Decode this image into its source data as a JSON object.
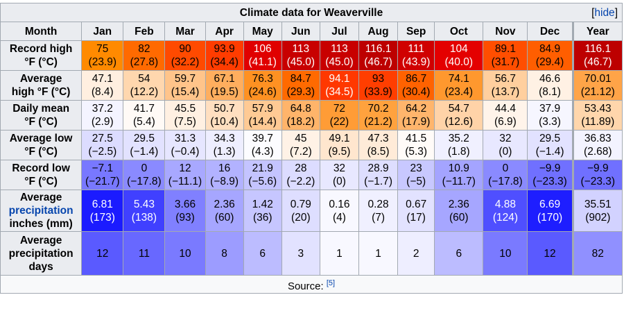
{
  "title": "Climate data for Weaverville",
  "hide_label": "hide",
  "header": {
    "month": "Month",
    "months": [
      "Jan",
      "Feb",
      "Mar",
      "Apr",
      "May",
      "Jun",
      "Jul",
      "Aug",
      "Sep",
      "Oct",
      "Nov",
      "Dec"
    ],
    "year": "Year"
  },
  "rows": [
    {
      "id": "record-high",
      "label_lines": [
        "Record high",
        "°F (°C)"
      ],
      "cells": [
        {
          "v": "75",
          "s": "(23.9)",
          "bg": "#ff8a00",
          "fg": "#000000"
        },
        {
          "v": "82",
          "s": "(27.8)",
          "bg": "#ff6a00",
          "fg": "#000000"
        },
        {
          "v": "90",
          "s": "(32.2)",
          "bg": "#ff4a00",
          "fg": "#000000"
        },
        {
          "v": "93.9",
          "s": "(34.4)",
          "bg": "#ff3c00",
          "fg": "#000000"
        },
        {
          "v": "106",
          "s": "(41.1)",
          "bg": "#e00000",
          "fg": "#ffffff"
        },
        {
          "v": "113",
          "s": "(45.0)",
          "bg": "#c80000",
          "fg": "#ffffff"
        },
        {
          "v": "113",
          "s": "(45.0)",
          "bg": "#c80000",
          "fg": "#ffffff"
        },
        {
          "v": "116.1",
          "s": "(46.7)",
          "bg": "#bd0000",
          "fg": "#ffffff"
        },
        {
          "v": "111",
          "s": "(43.9)",
          "bg": "#d00000",
          "fg": "#ffffff"
        },
        {
          "v": "104",
          "s": "(40.0)",
          "bg": "#e40000",
          "fg": "#ffffff"
        },
        {
          "v": "89.1",
          "s": "(31.7)",
          "bg": "#ff4e00",
          "fg": "#000000"
        },
        {
          "v": "84.9",
          "s": "(29.4)",
          "bg": "#ff5e00",
          "fg": "#000000"
        },
        {
          "v": "116.1",
          "s": "(46.7)",
          "bg": "#bd0000",
          "fg": "#ffffff"
        }
      ]
    },
    {
      "id": "average-high",
      "label_lines": [
        "Average",
        "high °F (°C)"
      ],
      "cells": [
        {
          "v": "47.1",
          "s": "(8.4)",
          "bg": "#ffefe0",
          "fg": "#000000"
        },
        {
          "v": "54",
          "s": "(12.2)",
          "bg": "#ffd7ae",
          "fg": "#000000"
        },
        {
          "v": "59.7",
          "s": "(15.4)",
          "bg": "#ffc48a",
          "fg": "#000000"
        },
        {
          "v": "67.1",
          "s": "(19.5)",
          "bg": "#ffae5e",
          "fg": "#000000"
        },
        {
          "v": "76.3",
          "s": "(24.6)",
          "bg": "#ff9122",
          "fg": "#000000"
        },
        {
          "v": "84.7",
          "s": "(29.3)",
          "bg": "#ff6a00",
          "fg": "#000000"
        },
        {
          "v": "94.1",
          "s": "(34.5)",
          "bg": "#ff3800",
          "fg": "#ffffff"
        },
        {
          "v": "93",
          "s": "(33.9)",
          "bg": "#ff3e00",
          "fg": "#000000"
        },
        {
          "v": "86.7",
          "s": "(30.4)",
          "bg": "#ff6200",
          "fg": "#000000"
        },
        {
          "v": "74.1",
          "s": "(23.4)",
          "bg": "#ff982e",
          "fg": "#000000"
        },
        {
          "v": "56.7",
          "s": "(13.7)",
          "bg": "#ffcf9e",
          "fg": "#000000"
        },
        {
          "v": "46.6",
          "s": "(8.1)",
          "bg": "#fff1e4",
          "fg": "#000000"
        },
        {
          "v": "70.01",
          "s": "(21.12)",
          "bg": "#ffa448",
          "fg": "#000000"
        }
      ]
    },
    {
      "id": "daily-mean",
      "label_lines": [
        "Daily mean",
        "°F (°C)"
      ],
      "cells": [
        {
          "v": "37.2",
          "s": "(2.9)",
          "bg": "#f4f4ff",
          "fg": "#000000"
        },
        {
          "v": "41.7",
          "s": "(5.4)",
          "bg": "#fffaf6",
          "fg": "#000000"
        },
        {
          "v": "45.5",
          "s": "(7.5)",
          "bg": "#fff0e2",
          "fg": "#000000"
        },
        {
          "v": "50.7",
          "s": "(10.4)",
          "bg": "#ffdfc0",
          "fg": "#000000"
        },
        {
          "v": "57.9",
          "s": "(14.4)",
          "bg": "#ffca94",
          "fg": "#000000"
        },
        {
          "v": "64.8",
          "s": "(18.2)",
          "bg": "#ffb46a",
          "fg": "#000000"
        },
        {
          "v": "72",
          "s": "(22)",
          "bg": "#ff9c36",
          "fg": "#000000"
        },
        {
          "v": "70.2",
          "s": "(21.2)",
          "bg": "#ffa23e",
          "fg": "#000000"
        },
        {
          "v": "64.2",
          "s": "(17.9)",
          "bg": "#ffb56c",
          "fg": "#000000"
        },
        {
          "v": "54.7",
          "s": "(12.6)",
          "bg": "#ffd3a8",
          "fg": "#000000"
        },
        {
          "v": "44.4",
          "s": "(6.9)",
          "bg": "#fff4ea",
          "fg": "#000000"
        },
        {
          "v": "37.9",
          "s": "(3.3)",
          "bg": "#f6f6ff",
          "fg": "#000000"
        },
        {
          "v": "53.43",
          "s": "(11.89)",
          "bg": "#ffd6ac",
          "fg": "#000000"
        }
      ]
    },
    {
      "id": "average-low",
      "label_lines": [
        "Average low",
        "°F (°C)"
      ],
      "cells": [
        {
          "v": "27.5",
          "s": "(−2.5)",
          "bg": "#dcdcff",
          "fg": "#000000"
        },
        {
          "v": "29.5",
          "s": "(−1.4)",
          "bg": "#e2e2ff",
          "fg": "#000000"
        },
        {
          "v": "31.3",
          "s": "(−0.4)",
          "bg": "#e6e6ff",
          "fg": "#000000"
        },
        {
          "v": "34.3",
          "s": "(1.3)",
          "bg": "#eeeeff",
          "fg": "#000000"
        },
        {
          "v": "39.7",
          "s": "(4.3)",
          "bg": "#fcfcff",
          "fg": "#000000"
        },
        {
          "v": "45",
          "s": "(7.2)",
          "bg": "#fff2e6",
          "fg": "#000000"
        },
        {
          "v": "49.1",
          "s": "(9.5)",
          "bg": "#ffe6ce",
          "fg": "#000000"
        },
        {
          "v": "47.3",
          "s": "(8.5)",
          "bg": "#ffebd8",
          "fg": "#000000"
        },
        {
          "v": "41.5",
          "s": "(5.3)",
          "bg": "#fffbf8",
          "fg": "#000000"
        },
        {
          "v": "35.2",
          "s": "(1.8)",
          "bg": "#f0f0ff",
          "fg": "#000000"
        },
        {
          "v": "32",
          "s": "(0)",
          "bg": "#e8e8ff",
          "fg": "#000000"
        },
        {
          "v": "29.5",
          "s": "(−1.4)",
          "bg": "#e2e2ff",
          "fg": "#000000"
        },
        {
          "v": "36.83",
          "s": "(2.68)",
          "bg": "#f3f3ff",
          "fg": "#000000"
        }
      ]
    },
    {
      "id": "record-low",
      "label_lines": [
        "Record low",
        "°F (°C)"
      ],
      "cells": [
        {
          "v": "−7.1",
          "s": "(−21.7)",
          "bg": "#7878ff",
          "fg": "#000000"
        },
        {
          "v": "0",
          "s": "(−17.8)",
          "bg": "#8a8aff",
          "fg": "#000000"
        },
        {
          "v": "12",
          "s": "(−11.1)",
          "bg": "#a8a8ff",
          "fg": "#000000"
        },
        {
          "v": "16",
          "s": "(−8.9)",
          "bg": "#b2b2ff",
          "fg": "#000000"
        },
        {
          "v": "21.9",
          "s": "(−5.6)",
          "bg": "#c4c4ff",
          "fg": "#000000"
        },
        {
          "v": "28",
          "s": "(−2.2)",
          "bg": "#dcdcff",
          "fg": "#000000"
        },
        {
          "v": "32",
          "s": "(0)",
          "bg": "#e8e8ff",
          "fg": "#000000"
        },
        {
          "v": "28.9",
          "s": "(−1.7)",
          "bg": "#dedeff",
          "fg": "#000000"
        },
        {
          "v": "23",
          "s": "(−5)",
          "bg": "#c8c8ff",
          "fg": "#000000"
        },
        {
          "v": "10.9",
          "s": "(−11.7)",
          "bg": "#a4a4ff",
          "fg": "#000000"
        },
        {
          "v": "0",
          "s": "(−17.8)",
          "bg": "#8a8aff",
          "fg": "#000000"
        },
        {
          "v": "−9.9",
          "s": "(−23.3)",
          "bg": "#7070ff",
          "fg": "#000000"
        },
        {
          "v": "−9.9",
          "s": "(−23.3)",
          "bg": "#7070ff",
          "fg": "#000000"
        }
      ]
    },
    {
      "id": "average-precipitation",
      "label_lines": [
        "Average",
        "precipitation",
        "inches (mm)"
      ],
      "link_line": 1,
      "cells": [
        {
          "v": "6.81",
          "s": "(173)",
          "bg": "#1b1bff",
          "fg": "#ffffff"
        },
        {
          "v": "5.43",
          "s": "(138)",
          "bg": "#4040ff",
          "fg": "#ffffff"
        },
        {
          "v": "3.66",
          "s": "(93)",
          "bg": "#8080ff",
          "fg": "#000000"
        },
        {
          "v": "2.36",
          "s": "(60)",
          "bg": "#a6a6ff",
          "fg": "#000000"
        },
        {
          "v": "1.42",
          "s": "(36)",
          "bg": "#c6c6ff",
          "fg": "#000000"
        },
        {
          "v": "0.79",
          "s": "(20)",
          "bg": "#dedeff",
          "fg": "#000000"
        },
        {
          "v": "0.16",
          "s": "(4)",
          "bg": "#f8f8ff",
          "fg": "#000000"
        },
        {
          "v": "0.28",
          "s": "(7)",
          "bg": "#f0f0ff",
          "fg": "#000000"
        },
        {
          "v": "0.67",
          "s": "(17)",
          "bg": "#e2e2ff",
          "fg": "#000000"
        },
        {
          "v": "2.36",
          "s": "(60)",
          "bg": "#a6a6ff",
          "fg": "#000000"
        },
        {
          "v": "4.88",
          "s": "(124)",
          "bg": "#4f4fff",
          "fg": "#ffffff"
        },
        {
          "v": "6.69",
          "s": "(170)",
          "bg": "#1e1eff",
          "fg": "#ffffff"
        },
        {
          "v": "35.51",
          "s": "(902)",
          "bg": "#d2d2ff",
          "fg": "#000000"
        }
      ]
    },
    {
      "id": "average-precipitation-days",
      "label_lines": [
        "Average",
        "precipitation",
        "days"
      ],
      "cells": [
        {
          "v": "12",
          "s": "",
          "bg": "#5a5aff",
          "fg": "#000000"
        },
        {
          "v": "11",
          "s": "",
          "bg": "#6868ff",
          "fg": "#000000"
        },
        {
          "v": "10",
          "s": "",
          "bg": "#7a7aff",
          "fg": "#000000"
        },
        {
          "v": "8",
          "s": "",
          "bg": "#9c9cff",
          "fg": "#000000"
        },
        {
          "v": "6",
          "s": "",
          "bg": "#bcbcff",
          "fg": "#000000"
        },
        {
          "v": "3",
          "s": "",
          "bg": "#e2e2ff",
          "fg": "#000000"
        },
        {
          "v": "1",
          "s": "",
          "bg": "#f8f8ff",
          "fg": "#000000"
        },
        {
          "v": "1",
          "s": "",
          "bg": "#f8f8ff",
          "fg": "#000000"
        },
        {
          "v": "2",
          "s": "",
          "bg": "#eeeeff",
          "fg": "#000000"
        },
        {
          "v": "6",
          "s": "",
          "bg": "#bcbcff",
          "fg": "#000000"
        },
        {
          "v": "10",
          "s": "",
          "bg": "#7a7aff",
          "fg": "#000000"
        },
        {
          "v": "12",
          "s": "",
          "bg": "#5a5aff",
          "fg": "#000000"
        },
        {
          "v": "82",
          "s": "",
          "bg": "#9090ff",
          "fg": "#000000"
        }
      ]
    }
  ],
  "source": {
    "label": "Source:",
    "ref": "[5]"
  }
}
